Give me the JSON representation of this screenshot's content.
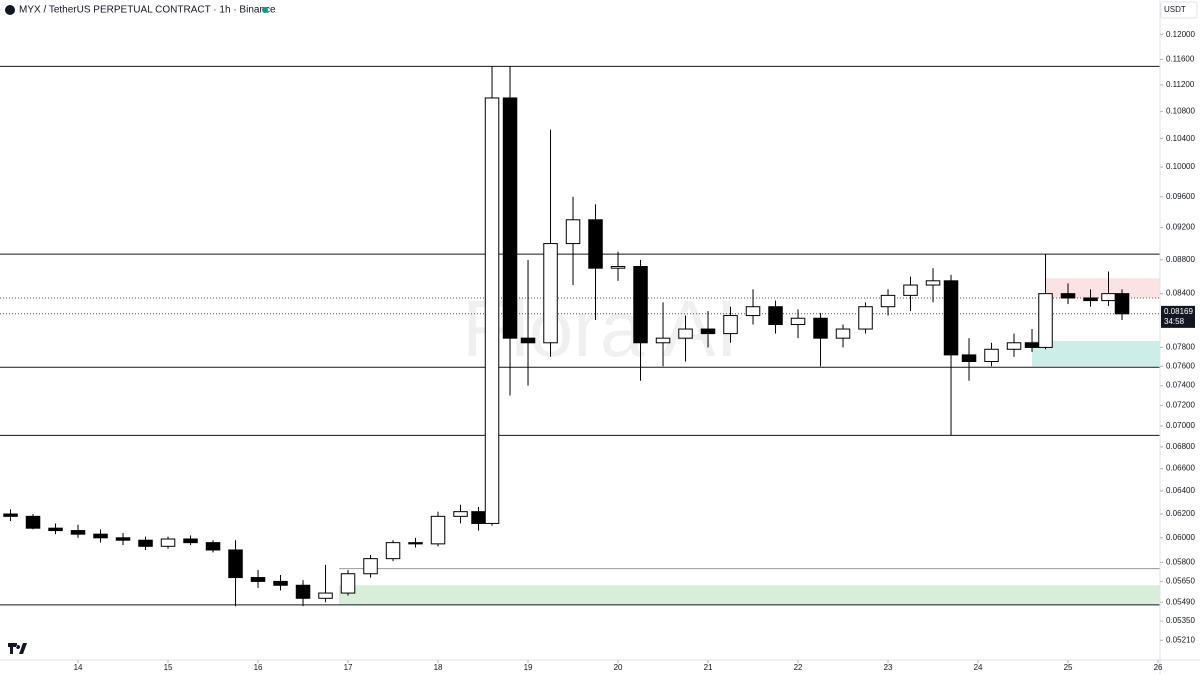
{
  "chart_data": {
    "type": "candlestick",
    "title": "MYX / TetherUS PERPETUAL CONTRACT · 1h · Binance",
    "currency": "USDT",
    "watermark": "Flora AI",
    "log_scale": true,
    "grid": false,
    "up_color": "#ffffff",
    "down_color": "#000000",
    "wick_color": "#000000",
    "xlim": [
      13.133,
      26.022
    ],
    "xticks": [
      14,
      15,
      16,
      17,
      18,
      19,
      20,
      21,
      22,
      23,
      24,
      25,
      26
    ],
    "ylim": [
      0.0507,
      0.1259
    ],
    "yticks": [
      {
        "value": 0.12,
        "label": "0.12000"
      },
      {
        "value": 0.116,
        "label": "0.11600"
      },
      {
        "value": 0.112,
        "label": "0.11200"
      },
      {
        "value": 0.108,
        "label": "0.10800"
      },
      {
        "value": 0.104,
        "label": "0.10400"
      },
      {
        "value": 0.1,
        "label": "0.10000"
      },
      {
        "value": 0.096,
        "label": "0.09600"
      },
      {
        "value": 0.092,
        "label": "0.09200"
      },
      {
        "value": 0.088,
        "label": "0.08800"
      },
      {
        "value": 0.084,
        "label": "0.08400"
      },
      {
        "value": 0.078,
        "label": "0.07800"
      },
      {
        "value": 0.076,
        "label": "0.07600"
      },
      {
        "value": 0.074,
        "label": "0.07400"
      },
      {
        "value": 0.072,
        "label": "0.07200"
      },
      {
        "value": 0.07,
        "label": "0.07000"
      },
      {
        "value": 0.068,
        "label": "0.06800"
      },
      {
        "value": 0.066,
        "label": "0.06600"
      },
      {
        "value": 0.064,
        "label": "0.06400"
      },
      {
        "value": 0.062,
        "label": "0.06200"
      },
      {
        "value": 0.06,
        "label": "0.06000"
      },
      {
        "value": 0.058,
        "label": "0.05800"
      },
      {
        "value": 0.0565,
        "label": "0.05650"
      },
      {
        "value": 0.0549,
        "label": "0.05490"
      },
      {
        "value": 0.0535,
        "label": "0.05350"
      },
      {
        "value": 0.0521,
        "label": "0.05210"
      }
    ],
    "x": [
      13.25,
      13.5,
      13.75,
      14,
      14.25,
      14.5,
      14.75,
      15,
      15.25,
      15.5,
      15.75,
      16,
      16.25,
      16.5,
      16.75,
      17,
      17.25,
      17.5,
      17.75,
      18,
      18.25,
      18.45,
      18.6,
      18.8,
      19,
      19.25,
      19.5,
      19.75,
      20,
      20.25,
      20.5,
      20.75,
      21,
      21.25,
      21.5,
      21.75,
      22,
      22.25,
      22.5,
      22.75,
      23,
      23.25,
      23.5,
      23.7,
      23.9,
      24.15,
      24.4,
      24.6,
      24.75,
      25,
      25.25,
      25.45,
      25.6
    ],
    "open": [
      0.062,
      0.0618,
      0.0608,
      0.0606,
      0.0603,
      0.06,
      0.0598,
      0.0593,
      0.0599,
      0.0596,
      0.059,
      0.0568,
      0.0565,
      0.0562,
      0.0552,
      0.0556,
      0.0571,
      0.0583,
      0.0596,
      0.0595,
      0.0618,
      0.0622,
      0.0612,
      0.11,
      0.079,
      0.0785,
      0.09,
      0.093,
      0.087,
      0.0872,
      0.0785,
      0.079,
      0.08,
      0.0795,
      0.0815,
      0.0825,
      0.0805,
      0.0812,
      0.079,
      0.08,
      0.0825,
      0.0838,
      0.085,
      0.0855,
      0.0772,
      0.0765,
      0.0778,
      0.0785,
      0.078,
      0.084,
      0.0835,
      0.0832,
      0.084
    ],
    "high": [
      0.0624,
      0.062,
      0.0612,
      0.0611,
      0.0607,
      0.0604,
      0.0601,
      0.0601,
      0.0602,
      0.0598,
      0.0598,
      0.0574,
      0.057,
      0.0566,
      0.0578,
      0.0574,
      0.0586,
      0.0598,
      0.06,
      0.0622,
      0.0628,
      0.0626,
      0.1149,
      0.1149,
      0.088,
      0.1053,
      0.096,
      0.095,
      0.089,
      0.088,
      0.083,
      0.0815,
      0.082,
      0.0825,
      0.0845,
      0.0832,
      0.0822,
      0.0818,
      0.0805,
      0.083,
      0.0845,
      0.086,
      0.087,
      0.0862,
      0.079,
      0.0785,
      0.0795,
      0.08,
      0.0887,
      0.0852,
      0.0845,
      0.0866,
      0.0845
    ],
    "low": [
      0.0614,
      0.0607,
      0.0603,
      0.06,
      0.0596,
      0.0594,
      0.059,
      0.0591,
      0.0594,
      0.0588,
      0.0546,
      0.056,
      0.0558,
      0.0546,
      0.0549,
      0.0554,
      0.0568,
      0.0581,
      0.0592,
      0.0593,
      0.0612,
      0.0606,
      0.061,
      0.073,
      0.074,
      0.077,
      0.085,
      0.081,
      0.0855,
      0.0745,
      0.076,
      0.0765,
      0.078,
      0.0785,
      0.0805,
      0.0795,
      0.079,
      0.076,
      0.078,
      0.0795,
      0.0815,
      0.082,
      0.083,
      0.0691,
      0.0745,
      0.076,
      0.077,
      0.0775,
      0.0778,
      0.0828,
      0.0825,
      0.0826,
      0.081
    ],
    "close": [
      0.0618,
      0.0608,
      0.0606,
      0.0603,
      0.06,
      0.0598,
      0.0593,
      0.0599,
      0.0596,
      0.059,
      0.0568,
      0.0565,
      0.0562,
      0.0552,
      0.0556,
      0.0571,
      0.0583,
      0.0596,
      0.0595,
      0.0618,
      0.0622,
      0.0612,
      0.11,
      0.079,
      0.0785,
      0.09,
      0.093,
      0.087,
      0.0872,
      0.0785,
      0.079,
      0.08,
      0.0795,
      0.0815,
      0.0825,
      0.0805,
      0.0812,
      0.079,
      0.08,
      0.0825,
      0.0838,
      0.085,
      0.0855,
      0.0772,
      0.0765,
      0.0778,
      0.0785,
      0.078,
      0.084,
      0.0835,
      0.0832,
      0.084,
      0.0817
    ],
    "levels": [
      0.1149,
      0.0887,
      0.0759,
      0.0691,
      0.0547
    ],
    "dotted_levels": [
      0.0835,
      0.0817
    ],
    "ray": {
      "value": 0.0575,
      "start": 16.9
    },
    "zones": [
      {
        "low": 0.0547,
        "high": 0.0562,
        "start": 16.9,
        "color": "#d8eed9"
      },
      {
        "low": 0.0835,
        "high": 0.0858,
        "start": 24.75,
        "color": "#fbe3e3"
      },
      {
        "low": 0.076,
        "high": 0.0787,
        "start": 24.6,
        "color": "#cdeee8"
      }
    ],
    "price_label": 0.08169,
    "countdown": "34:58"
  }
}
